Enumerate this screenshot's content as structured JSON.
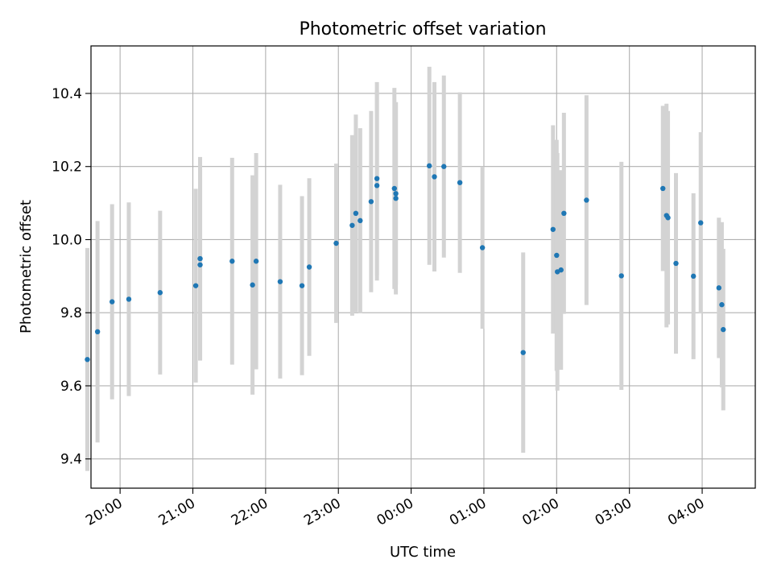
{
  "chart_data": {
    "type": "scatter",
    "title": "Photometric offset variation",
    "xlabel": "UTC time",
    "ylabel": "Photometric offset",
    "x_axis_kind": "time of day, hours past midnight relative to the 00:00 tick; negative values are the previous evening",
    "xlim": [
      -4.4,
      4.73
    ],
    "ylim": [
      9.32,
      10.53
    ],
    "xticks": [
      {
        "value": -4,
        "label": "20:00"
      },
      {
        "value": -3,
        "label": "21:00"
      },
      {
        "value": -2,
        "label": "22:00"
      },
      {
        "value": -1,
        "label": "23:00"
      },
      {
        "value": 0,
        "label": "00:00"
      },
      {
        "value": 1,
        "label": "01:00"
      },
      {
        "value": 2,
        "label": "02:00"
      },
      {
        "value": 3,
        "label": "03:00"
      },
      {
        "value": 4,
        "label": "04:00"
      }
    ],
    "yticks": [
      9.4,
      9.6,
      9.8,
      10.0,
      10.2,
      10.4
    ],
    "grid": true,
    "marker_color": "#1f77b4",
    "errorbar_color": "#d3d3d3",
    "points": [
      {
        "x": -4.45,
        "y": 9.672,
        "err": 0.305
      },
      {
        "x": -4.31,
        "y": 9.748,
        "err": 0.303
      },
      {
        "x": -4.11,
        "y": 9.83,
        "err": 0.267
      },
      {
        "x": -3.88,
        "y": 9.837,
        "err": 0.265
      },
      {
        "x": -3.45,
        "y": 9.855,
        "err": 0.224
      },
      {
        "x": -2.96,
        "y": 9.874,
        "err": 0.265
      },
      {
        "x": -2.9,
        "y": 9.948,
        "err": 0.278
      },
      {
        "x": -2.9,
        "y": 9.931,
        "err": 0.262
      },
      {
        "x": -2.46,
        "y": 9.941,
        "err": 0.283
      },
      {
        "x": -2.18,
        "y": 9.876,
        "err": 0.3
      },
      {
        "x": -2.13,
        "y": 9.941,
        "err": 0.296
      },
      {
        "x": -1.8,
        "y": 9.885,
        "err": 0.265
      },
      {
        "x": -1.5,
        "y": 9.874,
        "err": 0.245
      },
      {
        "x": -1.4,
        "y": 9.925,
        "err": 0.243
      },
      {
        "x": -1.03,
        "y": 9.99,
        "err": 0.218
      },
      {
        "x": -0.81,
        "y": 10.039,
        "err": 0.247
      },
      {
        "x": -0.76,
        "y": 10.072,
        "err": 0.27
      },
      {
        "x": -0.7,
        "y": 10.052,
        "err": 0.253
      },
      {
        "x": -0.55,
        "y": 10.104,
        "err": 0.248
      },
      {
        "x": -0.47,
        "y": 10.167,
        "err": 0.264
      },
      {
        "x": -0.47,
        "y": 10.148,
        "err": 0.26
      },
      {
        "x": -0.23,
        "y": 10.14,
        "err": 0.275
      },
      {
        "x": -0.21,
        "y": 10.126,
        "err": 0.25
      },
      {
        "x": -0.21,
        "y": 10.113,
        "err": 0.263
      },
      {
        "x": 0.25,
        "y": 10.202,
        "err": 0.271
      },
      {
        "x": 0.32,
        "y": 10.172,
        "err": 0.259
      },
      {
        "x": 0.45,
        "y": 10.2,
        "err": 0.249
      },
      {
        "x": 0.67,
        "y": 10.156,
        "err": 0.247
      },
      {
        "x": 0.98,
        "y": 9.978,
        "err": 0.222
      },
      {
        "x": 1.54,
        "y": 9.691,
        "err": 0.274
      },
      {
        "x": 1.95,
        "y": 10.028,
        "err": 0.285
      },
      {
        "x": 2.0,
        "y": 9.957,
        "err": 0.316
      },
      {
        "x": 2.01,
        "y": 9.912,
        "err": 0.325
      },
      {
        "x": 2.06,
        "y": 9.917,
        "err": 0.273
      },
      {
        "x": 2.1,
        "y": 10.072,
        "err": 0.275
      },
      {
        "x": 2.41,
        "y": 10.108,
        "err": 0.287
      },
      {
        "x": 2.89,
        "y": 9.901,
        "err": 0.312
      },
      {
        "x": 3.46,
        "y": 10.14,
        "err": 0.226
      },
      {
        "x": 3.51,
        "y": 10.066,
        "err": 0.306
      },
      {
        "x": 3.53,
        "y": 10.06,
        "err": 0.292
      },
      {
        "x": 3.64,
        "y": 9.935,
        "err": 0.247
      },
      {
        "x": 3.88,
        "y": 9.9,
        "err": 0.227
      },
      {
        "x": 3.98,
        "y": 10.046,
        "err": 0.248
      },
      {
        "x": 4.23,
        "y": 9.868,
        "err": 0.192
      },
      {
        "x": 4.27,
        "y": 9.822,
        "err": 0.226
      },
      {
        "x": 4.29,
        "y": 9.754,
        "err": 0.221
      }
    ]
  }
}
